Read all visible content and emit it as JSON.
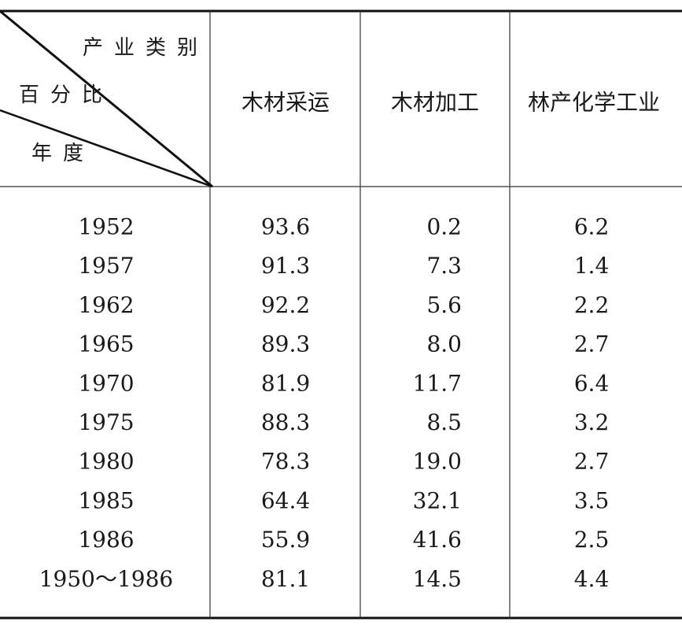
{
  "table": {
    "corner": {
      "column_label": "产业类别",
      "value_label": "百分比",
      "row_label": "年度"
    },
    "columns": [
      "木材采运",
      "木材加工",
      "林产化学工业"
    ],
    "rows": [
      [
        "1952",
        "93.6",
        "0.2",
        "6.2"
      ],
      [
        "1957",
        "91.3",
        "7.3",
        "1.4"
      ],
      [
        "1962",
        "92.2",
        "5.6",
        "2.2"
      ],
      [
        "1965",
        "89.3",
        "8.0",
        "2.7"
      ],
      [
        "1970",
        "81.9",
        "11.7",
        "6.4"
      ],
      [
        "1975",
        "88.3",
        "8.5",
        "3.2"
      ],
      [
        "1980",
        "78.3",
        "19.0",
        "2.7"
      ],
      [
        "1985",
        "64.4",
        "32.1",
        "3.5"
      ],
      [
        "1986",
        "55.9",
        "41.6",
        "2.5"
      ],
      [
        "1950～1986",
        "81.1",
        "14.5",
        "4.4"
      ]
    ]
  }
}
